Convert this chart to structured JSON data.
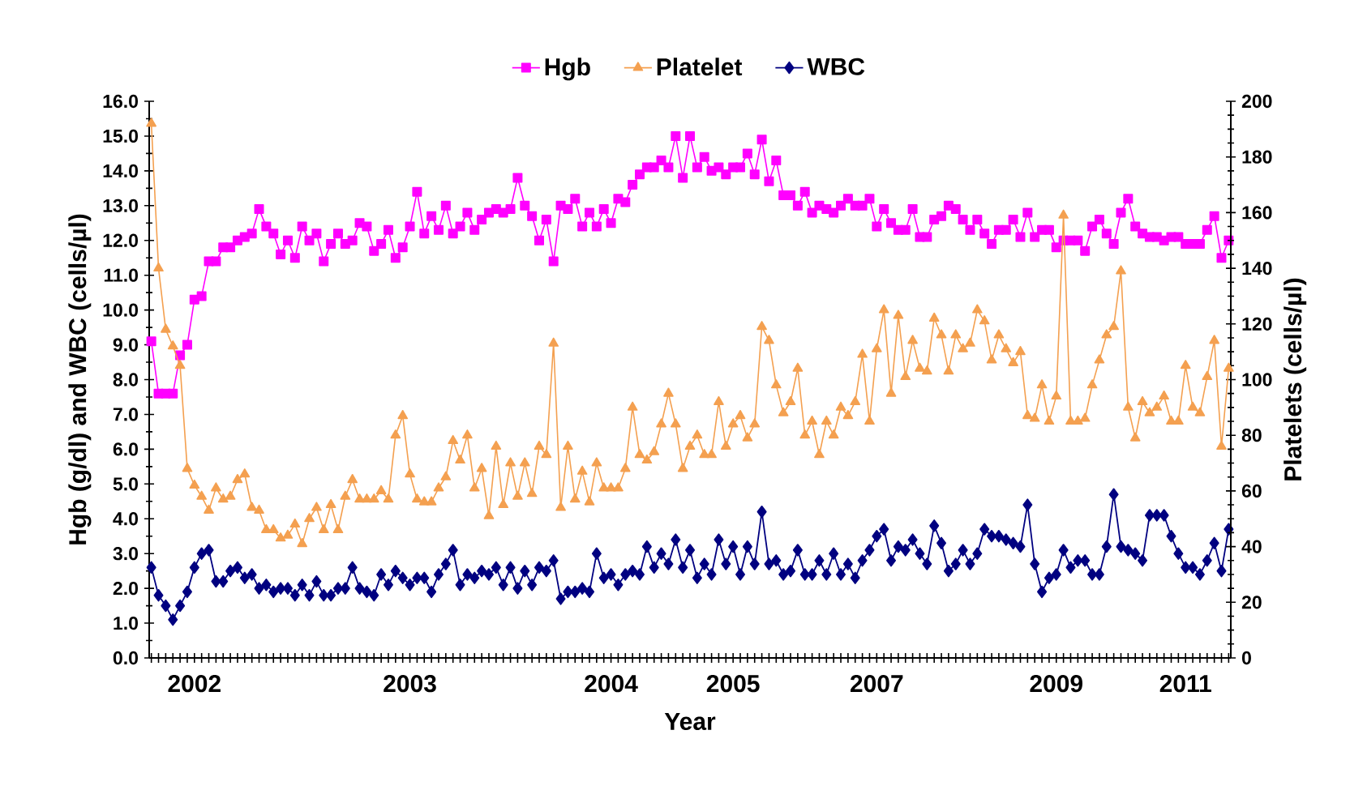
{
  "chart_data": {
    "type": "line",
    "xlabel": "Year",
    "ylabel": "Hgb (g/dl) and WBC (cells/µl)",
    "y2label": "Platelets (cells/µl)",
    "categories": [
      null,
      null,
      null,
      null,
      null,
      null,
      "2002",
      null,
      null,
      null,
      null,
      null,
      null,
      null,
      null,
      null,
      null,
      null,
      null,
      null,
      null,
      null,
      null,
      null,
      null,
      null,
      null,
      null,
      null,
      null,
      null,
      null,
      null,
      null,
      null,
      null,
      "2003",
      null,
      null,
      null,
      null,
      null,
      null,
      null,
      null,
      null,
      null,
      null,
      null,
      null,
      null,
      null,
      null,
      null,
      null,
      null,
      null,
      null,
      null,
      null,
      null,
      null,
      null,
      null,
      "2004",
      null,
      null,
      null,
      null,
      null,
      null,
      null,
      null,
      null,
      null,
      null,
      null,
      null,
      null,
      null,
      null,
      "2005",
      null,
      null,
      null,
      null,
      null,
      null,
      null,
      null,
      null,
      null,
      null,
      null,
      null,
      null,
      null,
      null,
      null,
      null,
      null,
      "2007",
      null,
      null,
      null,
      null,
      null,
      null,
      null,
      null,
      null,
      null,
      null,
      null,
      null,
      null,
      null,
      null,
      null,
      null,
      null,
      null,
      null,
      null,
      null,
      null,
      "2009",
      null,
      null,
      null,
      null,
      null,
      null,
      null,
      null,
      null,
      null,
      null,
      null,
      null,
      null,
      null,
      null,
      null,
      "2011",
      null,
      null,
      null,
      null,
      null,
      null
    ],
    "series": [
      {
        "name": "Hgb",
        "color": "#ff00ff",
        "marker": "square",
        "values": [
          9.1,
          7.6,
          7.6,
          7.6,
          8.7,
          9.0,
          10.3,
          10.4,
          11.4,
          11.4,
          11.8,
          11.8,
          12.0,
          12.1,
          12.2,
          12.9,
          12.4,
          12.2,
          11.6,
          12.0,
          11.5,
          12.4,
          12.0,
          12.2,
          11.4,
          11.9,
          12.2,
          11.9,
          12.0,
          12.5,
          12.4,
          11.7,
          11.9,
          12.3,
          11.5,
          11.8,
          12.4,
          13.4,
          12.2,
          12.7,
          12.3,
          13.0,
          12.2,
          12.4,
          12.8,
          12.3,
          12.6,
          12.8,
          12.9,
          12.8,
          12.9,
          13.8,
          13.0,
          12.7,
          12.0,
          12.6,
          11.4,
          13.0,
          12.9,
          13.2,
          12.4,
          12.8,
          12.4,
          12.9,
          12.5,
          13.2,
          13.1,
          13.6,
          13.9,
          14.1,
          14.1,
          14.3,
          14.1,
          15.0,
          13.8,
          15.0,
          14.1,
          14.4,
          14.0,
          14.1,
          13.9,
          14.1,
          14.1,
          14.5,
          13.9,
          14.9,
          13.7,
          14.3,
          13.3,
          13.3,
          13.0,
          13.4,
          12.8,
          13.0,
          12.9,
          12.8,
          13.0,
          13.2,
          13.0,
          13.0,
          13.2,
          12.4,
          12.9,
          12.5,
          12.3,
          12.3,
          12.9,
          12.1,
          12.1,
          12.6,
          12.7,
          13.0,
          12.9,
          12.6,
          12.3,
          12.6,
          12.2,
          11.9,
          12.3,
          12.3,
          12.6,
          12.1,
          12.8,
          12.1,
          12.3,
          12.3,
          11.8,
          12.0,
          12.0,
          12.0,
          11.7,
          12.4,
          12.6,
          12.2,
          11.9,
          12.8,
          13.2,
          12.4,
          12.2,
          12.1,
          12.1,
          12.0,
          12.1,
          12.1,
          11.9,
          11.9,
          11.9,
          12.3,
          12.7,
          11.5,
          12.0
        ]
      },
      {
        "name": "Platelet",
        "color": "#f4a050",
        "marker": "triangle",
        "axis": "y2",
        "values": [
          192,
          140,
          118,
          112,
          105,
          68,
          62,
          58,
          53,
          61,
          57,
          58,
          64,
          66,
          54,
          53,
          46,
          46,
          43,
          44,
          48,
          41,
          50,
          54,
          46,
          55,
          46,
          58,
          64,
          57,
          57,
          57,
          60,
          57,
          80,
          87,
          66,
          57,
          56,
          56,
          61,
          65,
          78,
          71,
          80,
          61,
          68,
          51,
          76,
          55,
          70,
          58,
          70,
          59,
          76,
          73,
          113,
          54,
          76,
          57,
          67,
          56,
          70,
          61,
          61,
          61,
          68,
          90,
          73,
          71,
          74,
          84,
          95,
          84,
          68,
          76,
          80,
          73,
          73,
          92,
          76,
          84,
          87,
          79,
          84,
          119,
          114,
          98,
          88,
          92,
          104,
          80,
          85,
          73,
          85,
          80,
          90,
          87,
          92,
          109,
          85,
          111,
          125,
          95,
          123,
          101,
          114,
          104,
          103,
          122,
          116,
          103,
          116,
          111,
          113,
          125,
          121,
          107,
          116,
          111,
          106,
          110,
          87,
          86,
          98,
          85,
          94,
          159,
          85,
          85,
          86,
          98,
          107,
          116,
          119,
          139,
          90,
          79,
          92,
          88,
          90,
          94,
          85,
          85,
          105,
          90,
          88,
          101,
          114,
          76,
          104
        ]
      },
      {
        "name": "WBC",
        "color": "#000080",
        "marker": "diamond",
        "values": [
          2.6,
          1.8,
          1.5,
          1.1,
          1.5,
          1.9,
          2.6,
          3.0,
          3.1,
          2.2,
          2.2,
          2.5,
          2.6,
          2.3,
          2.4,
          2.0,
          2.1,
          1.9,
          2.0,
          2.0,
          1.8,
          2.1,
          1.8,
          2.2,
          1.8,
          1.8,
          2.0,
          2.0,
          2.6,
          2.0,
          1.9,
          1.8,
          2.4,
          2.1,
          2.5,
          2.3,
          2.1,
          2.3,
          2.3,
          1.9,
          2.4,
          2.7,
          3.1,
          2.1,
          2.4,
          2.3,
          2.5,
          2.4,
          2.6,
          2.1,
          2.6,
          2.0,
          2.5,
          2.1,
          2.6,
          2.5,
          2.8,
          1.7,
          1.9,
          1.9,
          2.0,
          1.9,
          3.0,
          2.3,
          2.4,
          2.1,
          2.4,
          2.5,
          2.4,
          3.2,
          2.6,
          3.0,
          2.7,
          3.4,
          2.6,
          3.1,
          2.3,
          2.7,
          2.4,
          3.4,
          2.7,
          3.2,
          2.4,
          3.2,
          2.7,
          4.2,
          2.7,
          2.8,
          2.4,
          2.5,
          3.1,
          2.4,
          2.4,
          2.8,
          2.4,
          3.0,
          2.4,
          2.7,
          2.3,
          2.8,
          3.1,
          3.5,
          3.7,
          2.8,
          3.2,
          3.1,
          3.4,
          3.0,
          2.7,
          3.8,
          3.3,
          2.5,
          2.7,
          3.1,
          2.7,
          3.0,
          3.7,
          3.5,
          3.5,
          3.4,
          3.3,
          3.2,
          4.4,
          2.7,
          1.9,
          2.3,
          2.4,
          3.1,
          2.6,
          2.8,
          2.8,
          2.4,
          2.4,
          3.2,
          4.7,
          3.2,
          3.1,
          3.0,
          2.8,
          4.1,
          4.1,
          4.1,
          3.5,
          3.0,
          2.6,
          2.6,
          2.4,
          2.8,
          3.3,
          2.5,
          3.7
        ]
      }
    ],
    "ylim": [
      0,
      16
    ],
    "yticks": [
      {
        "value": 0,
        "label": "0.0"
      },
      {
        "value": 1,
        "label": "1.0"
      },
      {
        "value": 2,
        "label": "2.0"
      },
      {
        "value": 3,
        "label": "3.0"
      },
      {
        "value": 4,
        "label": "4.0"
      },
      {
        "value": 5,
        "label": "5.0"
      },
      {
        "value": 6,
        "label": "6.0"
      },
      {
        "value": 7,
        "label": "7.0"
      },
      {
        "value": 8,
        "label": "8.0"
      },
      {
        "value": 9,
        "label": "9.0"
      },
      {
        "value": 10,
        "label": "10.0"
      },
      {
        "value": 11,
        "label": "11.0"
      },
      {
        "value": 12,
        "label": "12.0"
      },
      {
        "value": 13,
        "label": "13.0"
      },
      {
        "value": 14,
        "label": "14.0"
      },
      {
        "value": 15,
        "label": "15.0"
      },
      {
        "value": 16,
        "label": "16.0"
      }
    ],
    "y2lim": [
      0,
      200
    ],
    "y2ticks": [
      0,
      20,
      40,
      60,
      80,
      100,
      120,
      140,
      160,
      180,
      200
    ],
    "legend": "top",
    "line_style": "solid"
  }
}
